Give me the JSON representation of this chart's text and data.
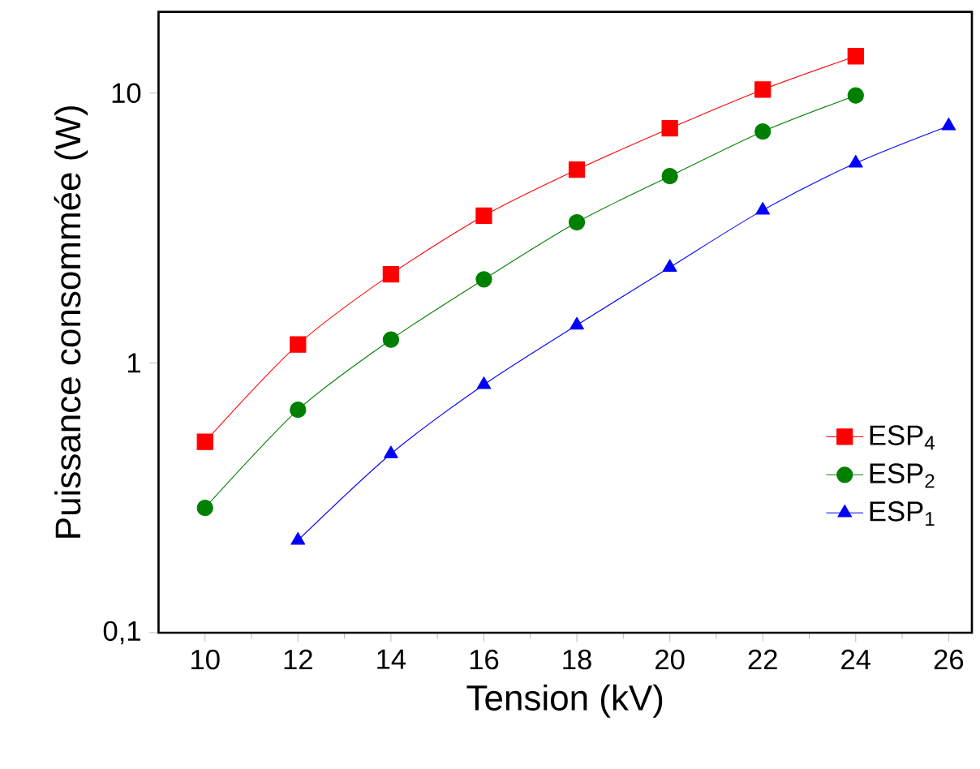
{
  "chart_data": {
    "type": "line",
    "xlabel": "Tension (kV)",
    "ylabel": "Puissance consommée (W)",
    "log": "y",
    "grid": false,
    "legend": "bottom right",
    "xlim": [
      9,
      26.5
    ],
    "xticks": [
      10,
      12,
      14,
      16,
      18,
      20,
      22,
      24,
      26
    ],
    "ylim": [
      0.1,
      20
    ],
    "yticks": [
      {
        "value": 0.1,
        "label": "0,1"
      },
      {
        "value": 1,
        "label": "1"
      },
      {
        "value": 10,
        "label": "10"
      }
    ],
    "series": [
      {
        "name": "ESP$_{4}$",
        "color": "#ff0000",
        "marker": "square",
        "x": [
          10,
          12,
          14,
          16,
          18,
          20,
          22,
          24
        ],
        "values": [
          0.51,
          1.17,
          2.13,
          3.51,
          5.2,
          7.4,
          10.3,
          13.7
        ]
      },
      {
        "name": "ESP$_{2}$",
        "color": "#008000",
        "marker": "circle",
        "x": [
          10,
          12,
          14,
          16,
          18,
          20,
          22,
          24
        ],
        "values": [
          0.29,
          0.67,
          1.22,
          2.04,
          3.32,
          4.92,
          7.2,
          9.8
        ]
      },
      {
        "name": "ESP$_{1}$",
        "color": "#0000ff",
        "marker": "triangle",
        "x": [
          12,
          14,
          16,
          18,
          20,
          22,
          24,
          26
        ],
        "values": [
          0.22,
          0.46,
          0.83,
          1.38,
          2.26,
          3.68,
          5.5,
          7.56
        ]
      }
    ]
  }
}
